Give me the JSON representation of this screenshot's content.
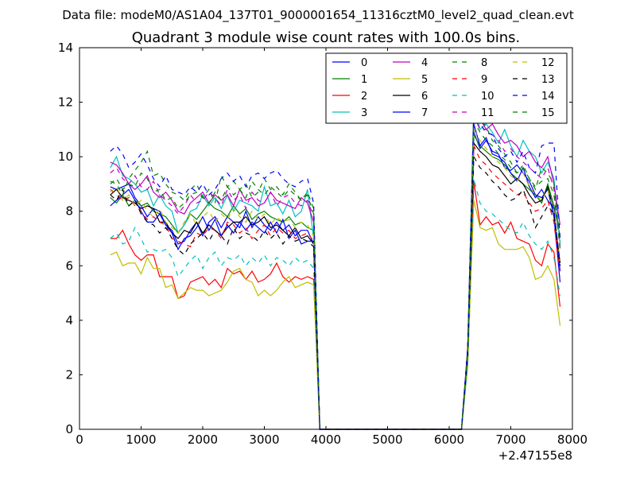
{
  "suptitle": "Data file: modeM0/AS1A04_137T01_9000001654_11316cztM0_level2_quad_clean.evt",
  "chart_data": {
    "type": "line",
    "title": "Quadrant 3 module wise count rates with 100.0s bins.",
    "xlabel": "",
    "ylabel": "",
    "x_offset_label": "+2.47155e8",
    "xlim": [
      0,
      8000
    ],
    "ylim": [
      0,
      14
    ],
    "xticks": [
      0,
      1000,
      2000,
      3000,
      4000,
      5000,
      6000,
      7000,
      8000
    ],
    "yticks": [
      0,
      2,
      4,
      6,
      8,
      10,
      12,
      14
    ],
    "legend_position": "top-right",
    "legend_columns": 4,
    "x": [
      500,
      600,
      700,
      800,
      900,
      1000,
      1100,
      1200,
      1300,
      1400,
      1500,
      1600,
      1700,
      1800,
      1900,
      2000,
      2100,
      2200,
      2300,
      2400,
      2500,
      2600,
      2700,
      2800,
      2900,
      3000,
      3100,
      3200,
      3300,
      3400,
      3500,
      3600,
      3700,
      3800,
      3900,
      4000,
      4500,
      5000,
      5500,
      6000,
      6200,
      6300,
      6400,
      6500,
      6600,
      6700,
      6800,
      6900,
      7000,
      7100,
      7200,
      7300,
      7400,
      7500,
      7600,
      7700,
      7800
    ],
    "series": [
      {
        "name": "0",
        "color": "#0000ff",
        "dash": false,
        "values": [
          8.9,
          8.8,
          8.9,
          9.0,
          8.5,
          8.2,
          7.8,
          8.1,
          8.0,
          7.5,
          7.3,
          6.8,
          6.9,
          7.3,
          7.6,
          7.1,
          7.6,
          7.8,
          7.4,
          7.8,
          7.6,
          7.4,
          8.0,
          7.4,
          7.8,
          7.5,
          7.3,
          7.6,
          7.3,
          7.5,
          7.1,
          7.3,
          7.3,
          6.8,
          0,
          0,
          0,
          0,
          0,
          0,
          0,
          2.8,
          10.9,
          10.3,
          10.6,
          10.2,
          10.1,
          9.6,
          9.5,
          9.7,
          9.4,
          9.1,
          8.6,
          8.5,
          8.8,
          7.8,
          5.4
        ]
      },
      {
        "name": "1",
        "color": "#008000",
        "dash": false,
        "values": [
          8.5,
          8.3,
          8.6,
          8.2,
          8.4,
          8.2,
          8.3,
          8.0,
          7.9,
          7.8,
          7.5,
          7.2,
          7.5,
          7.9,
          7.7,
          8.0,
          8.3,
          8.1,
          8.0,
          7.8,
          8.2,
          7.9,
          8.1,
          7.7,
          7.9,
          8.0,
          7.8,
          7.7,
          7.6,
          7.8,
          7.5,
          7.6,
          7.4,
          7.3,
          0,
          0,
          0,
          0,
          0,
          0,
          0,
          2.8,
          10.8,
          10.4,
          10.2,
          10.0,
          9.9,
          9.7,
          9.4,
          9.2,
          9.0,
          8.8,
          8.6,
          8.3,
          9.0,
          8.2,
          7.1
        ]
      },
      {
        "name": "2",
        "color": "#ff0000",
        "dash": false,
        "values": [
          7.0,
          7.0,
          7.3,
          6.8,
          6.4,
          6.2,
          6.4,
          6.4,
          5.6,
          5.6,
          5.6,
          4.8,
          4.9,
          5.4,
          5.5,
          5.6,
          5.3,
          5.5,
          5.2,
          5.9,
          5.7,
          5.8,
          5.5,
          5.8,
          5.4,
          5.5,
          5.7,
          6.1,
          5.6,
          5.4,
          5.6,
          5.5,
          5.6,
          5.5,
          0,
          0,
          0,
          0,
          0,
          0,
          0,
          2.5,
          9.1,
          7.5,
          7.8,
          7.5,
          7.6,
          7.2,
          7.6,
          7.0,
          6.9,
          6.8,
          6.2,
          6.0,
          6.8,
          6.5,
          4.5
        ]
      },
      {
        "name": "3",
        "color": "#00bfbf",
        "dash": false,
        "values": [
          9.6,
          10.0,
          9.3,
          9.2,
          9.0,
          8.7,
          8.8,
          8.2,
          8.6,
          8.2,
          8.0,
          7.2,
          7.5,
          8.0,
          8.1,
          8.6,
          8.2,
          8.5,
          8.1,
          8.6,
          8.0,
          8.4,
          8.3,
          8.2,
          8.0,
          8.9,
          8.2,
          8.3,
          7.9,
          8.4,
          7.8,
          8.0,
          8.8,
          7.0,
          0,
          0,
          0,
          0,
          0,
          0,
          0,
          3.0,
          12.0,
          11.0,
          11.2,
          10.9,
          10.5,
          11.0,
          10.4,
          10.0,
          10.6,
          10.2,
          10.0,
          9.4,
          9.8,
          9.2,
          6.8
        ]
      },
      {
        "name": "4",
        "color": "#bf00bf",
        "dash": false,
        "values": [
          9.8,
          9.7,
          9.4,
          9.0,
          8.8,
          9.0,
          9.3,
          8.7,
          8.5,
          8.7,
          8.4,
          8.0,
          7.9,
          8.3,
          8.5,
          8.7,
          8.3,
          8.6,
          8.4,
          8.6,
          8.2,
          8.8,
          8.4,
          8.5,
          8.2,
          8.3,
          8.7,
          8.4,
          8.3,
          8.2,
          8.1,
          8.5,
          8.3,
          7.6,
          0,
          0,
          0,
          0,
          0,
          0,
          0,
          3.0,
          11.7,
          11.4,
          11.0,
          11.2,
          10.8,
          10.5,
          10.6,
          10.4,
          10.0,
          10.2,
          9.8,
          9.6,
          10.0,
          9.0,
          7.5
        ]
      },
      {
        "name": "5",
        "color": "#bfbf00",
        "dash": false,
        "values": [
          6.4,
          6.5,
          6.0,
          6.1,
          6.1,
          5.7,
          6.3,
          5.9,
          5.9,
          5.2,
          5.3,
          4.8,
          5.0,
          5.2,
          5.1,
          5.1,
          4.9,
          5.0,
          5.1,
          5.4,
          5.8,
          5.9,
          5.5,
          5.4,
          4.9,
          5.1,
          4.9,
          5.1,
          5.4,
          5.6,
          5.2,
          5.3,
          5.4,
          5.3,
          0,
          0,
          0,
          0,
          0,
          0,
          0,
          2.3,
          8.4,
          7.4,
          7.3,
          7.4,
          6.8,
          6.6,
          6.6,
          6.6,
          6.7,
          6.3,
          5.5,
          5.6,
          6.0,
          5.5,
          3.8
        ]
      },
      {
        "name": "6",
        "color": "#000000",
        "dash": false,
        "values": [
          8.6,
          8.8,
          8.5,
          8.4,
          8.3,
          8.1,
          8.2,
          8.1,
          7.6,
          7.6,
          7.2,
          7.0,
          7.3,
          7.2,
          7.6,
          7.2,
          7.5,
          7.3,
          7.1,
          7.4,
          7.6,
          7.6,
          7.8,
          7.5,
          7.6,
          7.8,
          7.4,
          7.5,
          7.3,
          7.1,
          7.4,
          7.0,
          7.1,
          6.8,
          0,
          0,
          0,
          0,
          0,
          0,
          0,
          2.8,
          10.5,
          10.2,
          10.0,
          9.7,
          9.6,
          9.3,
          9.0,
          9.2,
          9.0,
          8.6,
          8.3,
          8.4,
          8.9,
          8.0,
          6.1
        ]
      },
      {
        "name": "7",
        "color": "#0000ff",
        "dash": false,
        "values": [
          8.2,
          8.4,
          8.6,
          8.8,
          8.4,
          8.0,
          7.6,
          7.6,
          7.9,
          7.5,
          7.2,
          6.6,
          7.0,
          7.1,
          7.4,
          7.8,
          7.3,
          7.7,
          7.1,
          7.5,
          7.2,
          7.6,
          7.3,
          7.6,
          7.4,
          7.2,
          7.6,
          7.2,
          7.7,
          7.0,
          7.3,
          6.8,
          6.9,
          6.9,
          0,
          0,
          0,
          0,
          0,
          0,
          0,
          2.8,
          11.2,
          10.4,
          10.7,
          10.1,
          10.0,
          9.8,
          9.4,
          9.1,
          9.6,
          8.9,
          8.5,
          8.8,
          8.4,
          8.1,
          5.8
        ]
      },
      {
        "name": "8",
        "color": "#008000",
        "dash": true,
        "values": [
          9.1,
          9.0,
          8.6,
          9.2,
          9.5,
          9.8,
          10.2,
          9.3,
          9.4,
          9.0,
          8.7,
          8.6,
          8.4,
          8.8,
          9.0,
          8.5,
          8.8,
          8.3,
          9.3,
          8.9,
          9.1,
          8.8,
          9.0,
          8.5,
          8.7,
          9.2,
          8.8,
          8.9,
          8.6,
          9.0,
          8.7,
          8.4,
          8.7,
          8.1,
          0,
          0,
          0,
          0,
          0,
          0,
          0,
          3.0,
          11.8,
          11.4,
          11.1,
          10.6,
          10.4,
          10.1,
          9.8,
          9.4,
          9.7,
          9.2,
          8.8,
          9.6,
          9.4,
          9.0,
          6.9
        ]
      },
      {
        "name": "9",
        "color": "#ff0000",
        "dash": true,
        "values": [
          8.8,
          8.6,
          8.4,
          8.5,
          8.2,
          8.0,
          7.7,
          7.8,
          7.6,
          7.5,
          7.0,
          6.9,
          6.8,
          6.7,
          7.2,
          7.1,
          7.4,
          7.3,
          7.0,
          7.6,
          7.5,
          7.2,
          7.4,
          7.0,
          7.3,
          7.5,
          7.1,
          7.4,
          7.2,
          7.3,
          7.0,
          7.1,
          7.2,
          6.9,
          0,
          0,
          0,
          0,
          0,
          0,
          0,
          2.7,
          10.4,
          9.9,
          9.7,
          9.4,
          9.2,
          9.0,
          8.8,
          8.6,
          8.7,
          8.3,
          8.0,
          8.1,
          8.4,
          7.6,
          5.6
        ]
      },
      {
        "name": "10",
        "color": "#00bfbf",
        "dash": true,
        "values": [
          7.0,
          7.2,
          6.8,
          6.9,
          7.4,
          7.0,
          6.5,
          6.6,
          6.5,
          6.6,
          6.3,
          5.6,
          5.9,
          6.2,
          6.4,
          5.9,
          6.3,
          6.5,
          6.0,
          6.3,
          6.2,
          6.4,
          6.0,
          6.3,
          6.1,
          6.4,
          6.0,
          6.3,
          6.2,
          6.0,
          6.3,
          6.1,
          6.2,
          5.9,
          0,
          0,
          0,
          0,
          0,
          0,
          0,
          2.4,
          9.2,
          8.3,
          8.0,
          7.9,
          7.7,
          7.5,
          7.3,
          7.2,
          7.6,
          7.1,
          6.8,
          6.6,
          6.9,
          6.3,
          4.9
        ]
      },
      {
        "name": "11",
        "color": "#bf00bf",
        "dash": true,
        "values": [
          9.4,
          9.6,
          9.2,
          9.0,
          9.3,
          8.9,
          8.8,
          9.1,
          8.6,
          8.4,
          8.2,
          7.9,
          8.2,
          8.6,
          8.3,
          8.4,
          8.7,
          8.5,
          8.2,
          8.8,
          8.4,
          8.6,
          8.1,
          8.7,
          8.4,
          8.3,
          8.7,
          8.2,
          8.5,
          8.6,
          8.3,
          8.2,
          8.4,
          7.8,
          0,
          0,
          0,
          0,
          0,
          0,
          0,
          3.0,
          11.5,
          11.0,
          11.0,
          10.8,
          10.6,
          10.2,
          10.3,
          10.0,
          9.8,
          9.6,
          9.4,
          9.2,
          9.6,
          8.8,
          6.6
        ]
      },
      {
        "name": "12",
        "color": "#bfbf00",
        "dash": true,
        "values": [
          8.7,
          8.9,
          8.4,
          8.6,
          8.2,
          8.4,
          8.0,
          7.8,
          8.1,
          7.6,
          7.4,
          7.2,
          7.6,
          7.9,
          7.5,
          7.8,
          8.0,
          7.6,
          7.9,
          7.7,
          8.1,
          7.8,
          7.6,
          8.0,
          7.7,
          7.9,
          7.5,
          7.8,
          7.6,
          7.7,
          7.4,
          7.6,
          7.5,
          7.1,
          0,
          0,
          0,
          0,
          0,
          0,
          0,
          2.9,
          11.0,
          10.6,
          10.3,
          10.0,
          9.8,
          9.6,
          9.3,
          9.1,
          9.4,
          8.9,
          8.6,
          8.4,
          8.8,
          8.0,
          6.0
        ]
      },
      {
        "name": "13",
        "color": "#000000",
        "dash": true,
        "values": [
          8.6,
          8.4,
          8.8,
          8.2,
          8.4,
          7.9,
          7.6,
          7.5,
          7.2,
          7.4,
          7.0,
          6.6,
          6.4,
          6.8,
          7.0,
          7.2,
          6.9,
          7.3,
          7.1,
          6.8,
          7.4,
          7.0,
          7.2,
          7.1,
          6.9,
          7.3,
          7.0,
          7.2,
          6.8,
          7.1,
          6.9,
          7.0,
          6.9,
          6.7,
          0,
          0,
          0,
          0,
          0,
          0,
          0,
          2.7,
          10.0,
          9.6,
          9.4,
          9.1,
          8.9,
          8.6,
          8.4,
          8.5,
          8.8,
          8.2,
          7.4,
          7.8,
          8.2,
          7.9,
          6.0
        ]
      },
      {
        "name": "14",
        "color": "#0000ff",
        "dash": true,
        "values": [
          10.2,
          10.4,
          10.1,
          9.6,
          9.8,
          10.1,
          9.7,
          9.2,
          8.9,
          9.3,
          8.8,
          8.7,
          8.6,
          8.9,
          8.7,
          9.0,
          8.6,
          8.8,
          9.2,
          9.4,
          9.1,
          9.3,
          8.9,
          9.3,
          9.4,
          9.2,
          9.4,
          9.5,
          9.2,
          9.0,
          8.9,
          9.1,
          9.2,
          8.3,
          0,
          0,
          0,
          0,
          0,
          0,
          0,
          3.0,
          11.6,
          11.2,
          10.9,
          10.8,
          10.3,
          10.0,
          10.2,
          9.8,
          10.2,
          9.6,
          9.4,
          10.4,
          10.5,
          10.5,
          7.0
        ]
      },
      {
        "name": "15",
        "color": "#008000",
        "dash": true,
        "values": [
          9.0,
          9.2,
          8.8,
          9.0,
          8.9,
          9.4,
          9.2,
          8.7,
          8.8,
          8.4,
          8.5,
          8.1,
          8.3,
          8.6,
          8.7,
          8.5,
          8.3,
          8.7,
          8.4,
          8.9,
          8.6,
          8.8,
          8.5,
          9.1,
          8.8,
          8.6,
          8.9,
          8.7,
          8.5,
          8.8,
          8.6,
          8.4,
          8.6,
          7.9,
          0,
          0,
          0,
          0,
          0,
          0,
          0,
          2.9,
          11.3,
          10.9,
          10.6,
          10.4,
          10.1,
          9.9,
          9.6,
          9.4,
          9.6,
          9.2,
          8.9,
          9.1,
          9.2,
          8.6,
          6.7
        ]
      }
    ]
  }
}
